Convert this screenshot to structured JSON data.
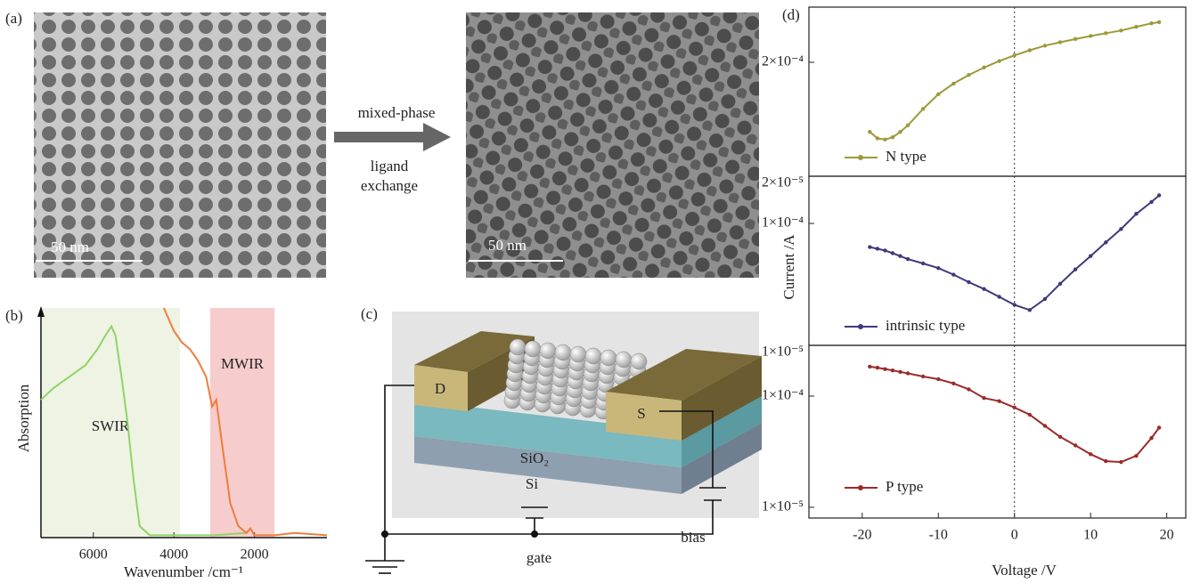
{
  "panel_labels": [
    "(a)",
    "(b)",
    "(c)",
    "(d)"
  ],
  "images": {
    "scale_bars": [
      "50 nm",
      "50 nm"
    ],
    "arrow_top": "mixed-phase",
    "arrow_bottom": [
      "ligand",
      "exchange"
    ]
  },
  "diagram": {
    "drain": "D",
    "source": "S",
    "oxide": "SiO₂",
    "substrate": "Si",
    "bias": "bias",
    "gate": "gate"
  },
  "chart_data": [
    {
      "type": "line",
      "xlabel": "Wavenumber /cm⁻¹",
      "ylabel": "Absorption",
      "xlim": [
        7300,
        200
      ],
      "ylim": [
        0,
        1
      ],
      "xticks": [
        6000,
        4000,
        2000
      ],
      "regions": [
        {
          "label": "SWIR",
          "from": 7300,
          "to": 3850,
          "color": "#eef3e3"
        },
        {
          "label": "MWIR",
          "from": 3100,
          "to": 1500,
          "color": "#f6cccc"
        }
      ],
      "series": [
        {
          "color": "#8fd468",
          "x": [
            7300,
            7000,
            6600,
            6200,
            5900,
            5700,
            5550,
            5450,
            5300,
            5150,
            5000,
            4850,
            4600,
            4000,
            3000,
            2200
          ],
          "values": [
            0.6,
            0.65,
            0.7,
            0.75,
            0.82,
            0.88,
            0.92,
            0.88,
            0.7,
            0.5,
            0.25,
            0.05,
            0.01,
            0.01,
            0.01,
            0.02
          ]
        },
        {
          "color": "#ef7d3c",
          "x": [
            4250,
            4000,
            3800,
            3600,
            3400,
            3200,
            3050,
            2950,
            2800,
            2600,
            2400,
            2200,
            2100,
            2000,
            1500,
            1000,
            200
          ],
          "values": [
            1.0,
            0.9,
            0.85,
            0.82,
            0.77,
            0.7,
            0.57,
            0.6,
            0.4,
            0.15,
            0.05,
            0.02,
            0.04,
            0.01,
            0.01,
            0.02,
            0.01
          ]
        }
      ]
    },
    {
      "type": "line",
      "yscale": "log",
      "xlim": [
        -27,
        22.5
      ],
      "ylim": [
        2e-05,
        0.00061
      ],
      "vline": 0,
      "yticks": [
        {
          "value": 0.0002,
          "label": "2×10⁻⁴"
        },
        {
          "value": 2e-05,
          "label": "2×10⁻⁵"
        }
      ],
      "series": [
        {
          "name": "N type",
          "color": "#9c9a3a",
          "x": [
            -19,
            -18,
            -17,
            -16,
            -15,
            -14,
            -12,
            -10,
            -8,
            -6,
            -4,
            -2,
            0,
            2,
            4,
            6,
            8,
            10,
            12,
            14,
            16,
            18,
            19
          ],
          "values": [
            4.9e-05,
            4.3e-05,
            4.2e-05,
            4.4e-05,
            4.9e-05,
            5.6e-05,
            7.8e-05,
            0.000105,
            0.00013,
            0.000155,
            0.00018,
            0.000205,
            0.00023,
            0.000255,
            0.00028,
            0.0003,
            0.00032,
            0.00034,
            0.00036,
            0.00038,
            0.00041,
            0.00044,
            0.00045
          ]
        }
      ]
    },
    {
      "type": "line",
      "yscale": "log",
      "ylabel": "Current /A",
      "xlim": [
        -27,
        22.5
      ],
      "ylim": [
        1e-05,
        0.000244
      ],
      "vline": 0,
      "yticks": [
        {
          "value": 0.0001,
          "label": "1×10⁻⁴"
        },
        {
          "value": 1e-05,
          "label": "1×10⁻⁵"
        }
      ],
      "series": [
        {
          "name": "intrinsic type",
          "color": "#3f3a7a",
          "x": [
            -19,
            -18,
            -17,
            -16,
            -15,
            -14,
            -12,
            -10,
            -8,
            -6,
            -4,
            -2,
            0,
            2,
            4,
            6,
            8,
            10,
            12,
            14,
            16,
            18,
            19
          ],
          "values": [
            6.4e-05,
            6.2e-05,
            6e-05,
            5.7e-05,
            5.4e-05,
            5.1e-05,
            4.7e-05,
            4.3e-05,
            3.8e-05,
            3.3e-05,
            2.9e-05,
            2.5e-05,
            2.15e-05,
            1.95e-05,
            2.4e-05,
            3.2e-05,
            4.2e-05,
            5.4e-05,
            7e-05,
            9e-05,
            0.00012,
            0.00015,
            0.00017
          ]
        }
      ]
    },
    {
      "type": "line",
      "yscale": "log",
      "xlabel": "Voltage /V",
      "xlim": [
        -27,
        22.5
      ],
      "ylim": [
        8e-06,
        0.000286
      ],
      "vline": 0,
      "xticks": [
        -20,
        -10,
        0,
        10,
        20
      ],
      "yticks": [
        {
          "value": 0.0001,
          "label": "1×10⁻⁴"
        },
        {
          "value": 1e-05,
          "label": "1×10⁻⁵"
        }
      ],
      "series": [
        {
          "name": "P type",
          "color": "#9b2b2b",
          "x": [
            -19,
            -18,
            -17,
            -16,
            -15,
            -14,
            -12,
            -10,
            -8,
            -6,
            -4,
            -2,
            0,
            2,
            4,
            6,
            8,
            10,
            12,
            14,
            16,
            18,
            19
          ],
          "values": [
            0.000184,
            0.00018,
            0.000175,
            0.00017,
            0.000165,
            0.00016,
            0.00015,
            0.000142,
            0.00013,
            0.000115,
            9.6e-05,
            9e-05,
            7.9e-05,
            6.8e-05,
            5.4e-05,
            4.3e-05,
            3.6e-05,
            3e-05,
            2.6e-05,
            2.55e-05,
            2.9e-05,
            4.2e-05,
            5.2e-05
          ]
        }
      ]
    }
  ]
}
